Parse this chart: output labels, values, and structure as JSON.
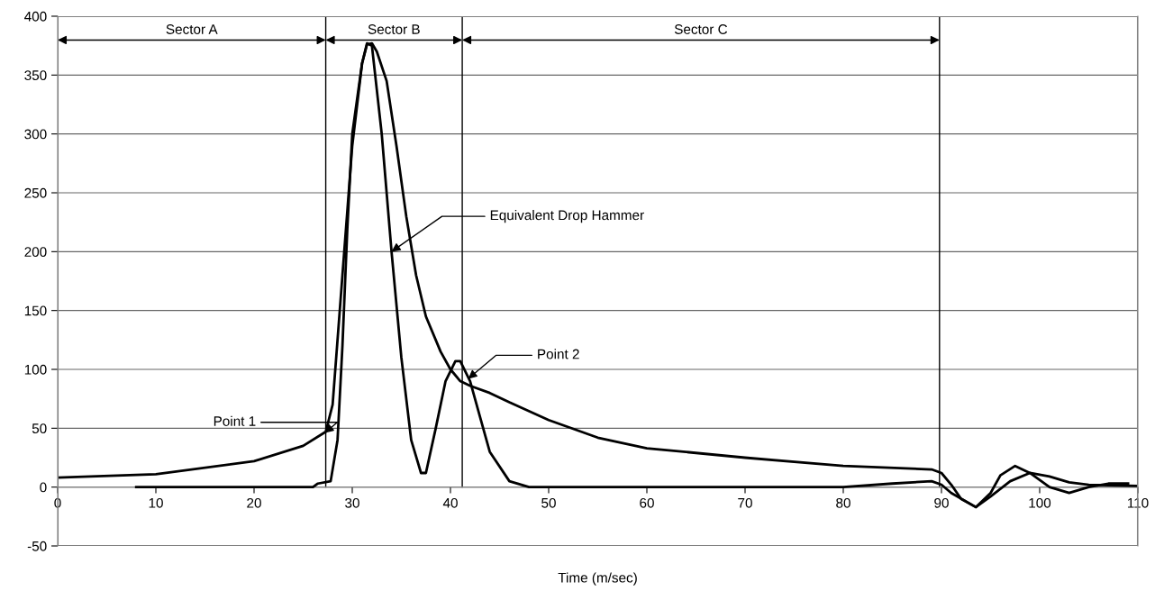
{
  "chart_data": {
    "type": "line",
    "xlabel": "Time (m/sec)",
    "xlim": [
      0,
      110
    ],
    "xticks": [
      0,
      10,
      20,
      30,
      40,
      50,
      60,
      70,
      80,
      90,
      100,
      110
    ],
    "ylim": [
      -50,
      400
    ],
    "yticks": [
      -50,
      0,
      50,
      100,
      150,
      200,
      250,
      300,
      350,
      400
    ],
    "grid": "y",
    "marker": "none",
    "line_style": "solid",
    "series": [
      {
        "color": "#000000",
        "x": [
          0,
          10,
          20,
          25,
          27.3,
          28,
          29,
          30,
          31,
          31.5,
          32,
          32.5,
          33.5,
          34.5,
          35.5,
          36.5,
          37.5,
          39,
          40,
          41,
          42,
          44,
          46,
          50,
          55,
          60,
          70,
          80,
          89,
          90,
          91,
          92,
          93.5,
          95,
          97,
          99,
          101,
          103,
          105,
          110
        ],
        "values": [
          8,
          11,
          22,
          35,
          47,
          70,
          180,
          290,
          360,
          376,
          377,
          370,
          345,
          290,
          230,
          180,
          145,
          115,
          100,
          90,
          86,
          80,
          72,
          57,
          42,
          33,
          25,
          18,
          15,
          12,
          2,
          -10,
          -17,
          -8,
          5,
          12,
          9,
          4,
          2,
          1
        ]
      },
      {
        "name": "Equivalent Drop Hammer",
        "color": "#000000",
        "x": [
          8,
          26,
          26.5,
          27.8,
          28.5,
          29,
          29.5,
          30,
          31,
          31.5,
          32,
          33,
          34,
          35,
          36,
          37,
          37.5,
          38.5,
          39.5,
          40.5,
          41,
          42,
          43,
          44,
          46,
          48,
          80,
          85,
          89,
          90,
          91,
          93.5,
          95,
          96,
          97.5,
          99,
          101,
          103,
          105,
          107,
          109
        ],
        "values": [
          0,
          0,
          3,
          5,
          40,
          120,
          220,
          300,
          360,
          377,
          375,
          300,
          200,
          110,
          40,
          12,
          12,
          50,
          90,
          107,
          107,
          90,
          60,
          30,
          5,
          0,
          0,
          3,
          5,
          2,
          -5,
          -17,
          -5,
          10,
          18,
          12,
          0,
          -5,
          0,
          3,
          3
        ]
      }
    ],
    "ref_lines": [
      {
        "axis": "x",
        "value": 27.3
      },
      {
        "axis": "x",
        "value": 41.2
      },
      {
        "axis": "x",
        "value": 89.8
      }
    ],
    "annotations": [
      "Sector A",
      "Sector B",
      "Sector C",
      {
        "text": "Point 1",
        "x": 27.2,
        "y": 46
      },
      {
        "text": "Point 2",
        "x": 41.8,
        "y": 92
      }
    ]
  }
}
